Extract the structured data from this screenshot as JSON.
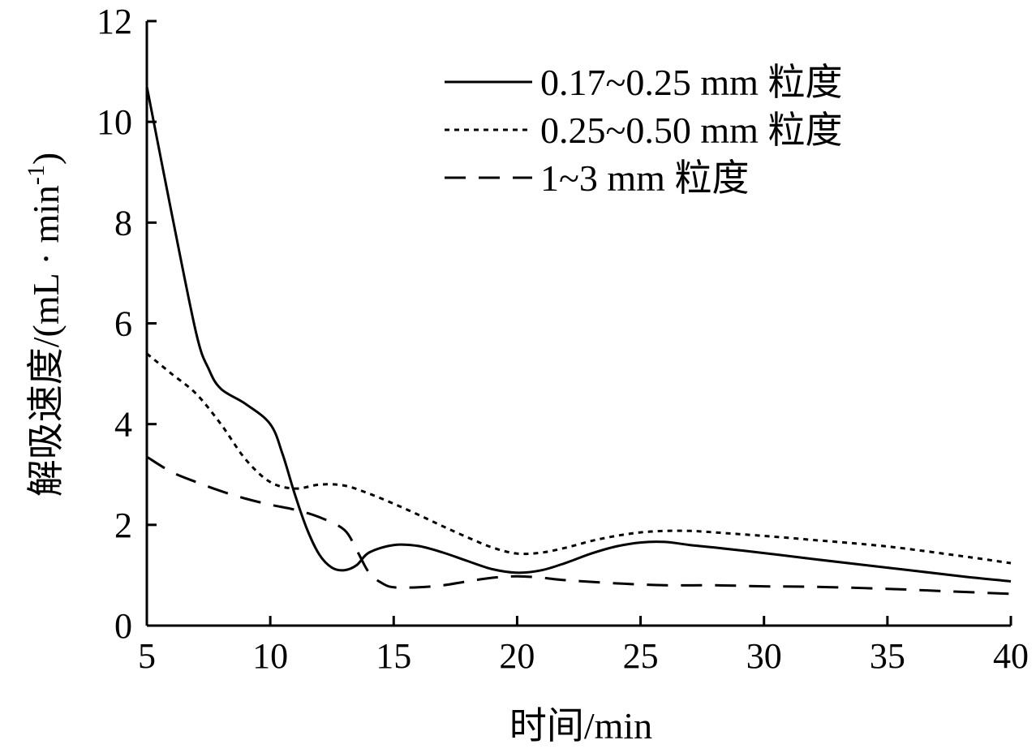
{
  "chart_data": {
    "type": "line",
    "xlabel": "时间/min",
    "ylabel_main": "解吸速度/(mL · min",
    "ylabel_sup": "-1",
    "ylabel_close": ")",
    "xlim": [
      5,
      40
    ],
    "ylim": [
      0,
      12
    ],
    "xticks": [
      5,
      10,
      15,
      20,
      25,
      30,
      35,
      40
    ],
    "yticks": [
      0,
      2,
      4,
      6,
      8,
      10,
      12
    ],
    "grid": false,
    "legend_position": "top-right",
    "series": [
      {
        "name": "0.17~0.25 mm 粒度",
        "style": "solid",
        "x": [
          5,
          6,
          7,
          7.5,
          8,
          9,
          10,
          10.5,
          11,
          11.5,
          12,
          12.5,
          13,
          13.5,
          14,
          15,
          16,
          17,
          18,
          19,
          20,
          21,
          22,
          23,
          24,
          25,
          26,
          27,
          28,
          30,
          32,
          35,
          38,
          40
        ],
        "y": [
          10.7,
          8.2,
          5.8,
          5.1,
          4.7,
          4.4,
          4.0,
          3.4,
          2.6,
          1.9,
          1.4,
          1.15,
          1.1,
          1.2,
          1.45,
          1.6,
          1.58,
          1.45,
          1.28,
          1.12,
          1.05,
          1.1,
          1.25,
          1.43,
          1.57,
          1.65,
          1.66,
          1.6,
          1.55,
          1.44,
          1.32,
          1.15,
          0.98,
          0.88
        ]
      },
      {
        "name": "0.25~0.50 mm 粒度",
        "style": "dotted",
        "x": [
          5,
          6,
          7,
          8,
          9,
          10,
          11,
          12,
          13,
          14,
          15,
          16,
          17,
          18,
          19,
          20,
          21,
          22,
          23,
          24,
          25,
          26,
          27,
          28,
          30,
          32,
          35,
          38,
          40
        ],
        "y": [
          5.4,
          5.0,
          4.6,
          4.0,
          3.3,
          2.85,
          2.72,
          2.8,
          2.78,
          2.62,
          2.42,
          2.2,
          1.97,
          1.75,
          1.55,
          1.43,
          1.45,
          1.55,
          1.68,
          1.78,
          1.85,
          1.88,
          1.88,
          1.85,
          1.78,
          1.7,
          1.57,
          1.38,
          1.24
        ]
      },
      {
        "name": "1~3 mm 粒度",
        "style": "dashed",
        "x": [
          5,
          6,
          7,
          8,
          9,
          10,
          11,
          12,
          13,
          13.5,
          14,
          14.5,
          15,
          16,
          17,
          18,
          19,
          20,
          21,
          22,
          24,
          26,
          28,
          30,
          32,
          35,
          38,
          40
        ],
        "y": [
          3.35,
          3.05,
          2.85,
          2.67,
          2.52,
          2.4,
          2.3,
          2.15,
          1.9,
          1.5,
          1.05,
          0.85,
          0.76,
          0.76,
          0.8,
          0.88,
          0.95,
          0.98,
          0.95,
          0.9,
          0.84,
          0.8,
          0.8,
          0.78,
          0.77,
          0.73,
          0.67,
          0.63
        ]
      }
    ]
  }
}
